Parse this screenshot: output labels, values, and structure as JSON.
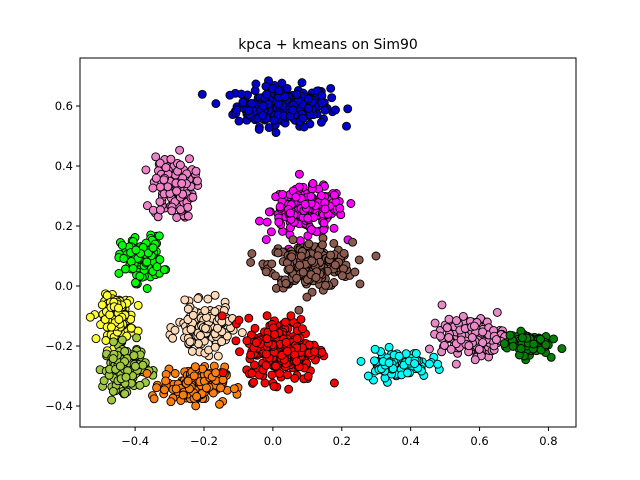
{
  "chart_data": {
    "type": "scatter",
    "title": "kpca + kmeans on Sim90",
    "xlabel": "",
    "ylabel": "",
    "xlim": [
      -0.56,
      0.88
    ],
    "ylim": [
      -0.47,
      0.76
    ],
    "xticks": [
      -0.4,
      -0.2,
      0.0,
      0.2,
      0.4,
      0.6,
      0.8
    ],
    "yticks": [
      -0.4,
      -0.2,
      0.0,
      0.2,
      0.4,
      0.6
    ],
    "xtick_labels": [
      "−0.4",
      "−0.2",
      "0.0",
      "0.2",
      "0.4",
      "0.6",
      "0.8"
    ],
    "ytick_labels": [
      "−0.4",
      "−0.2",
      "0.0",
      "0.2",
      "0.4",
      "0.6"
    ],
    "grid": false,
    "legend": "none",
    "marker_edge_color": "#000000",
    "clusters": [
      {
        "color": "#0000cd",
        "center": [
          0.03,
          0.6
        ],
        "spread": [
          0.09,
          0.045
        ],
        "approx_points": 260
      },
      {
        "color": "#ff00ff",
        "center": [
          0.1,
          0.25
        ],
        "spread": [
          0.07,
          0.05
        ],
        "approx_points": 200
      },
      {
        "color": "#8b5a4e",
        "center": [
          0.11,
          0.07
        ],
        "spread": [
          0.08,
          0.05
        ],
        "approx_points": 240
      },
      {
        "color": "#ee82c8",
        "center": [
          -0.29,
          0.33
        ],
        "spread": [
          0.04,
          0.07
        ],
        "approx_points": 120
      },
      {
        "color": "#00ff00",
        "center": [
          -0.38,
          0.09
        ],
        "spread": [
          0.04,
          0.05
        ],
        "approx_points": 130
      },
      {
        "color": "#ffff33",
        "center": [
          -0.45,
          -0.11
        ],
        "spread": [
          0.03,
          0.05
        ],
        "approx_points": 140
      },
      {
        "color": "#a0c840",
        "center": [
          -0.43,
          -0.27
        ],
        "spread": [
          0.04,
          0.05
        ],
        "approx_points": 140
      },
      {
        "color": "#ffdab9",
        "center": [
          -0.2,
          -0.14
        ],
        "spread": [
          0.05,
          0.05
        ],
        "approx_points": 170
      },
      {
        "color": "#ff7f0e",
        "center": [
          -0.23,
          -0.33
        ],
        "spread": [
          0.06,
          0.04
        ],
        "approx_points": 170
      },
      {
        "color": "#ff0000",
        "center": [
          0.03,
          -0.21
        ],
        "spread": [
          0.07,
          0.07
        ],
        "approx_points": 280
      },
      {
        "color": "#00ffff",
        "center": [
          0.36,
          -0.26
        ],
        "spread": [
          0.06,
          0.03
        ],
        "approx_points": 110
      },
      {
        "color": "#e88ac8",
        "center": [
          0.58,
          -0.17
        ],
        "spread": [
          0.06,
          0.04
        ],
        "approx_points": 190
      },
      {
        "color": "#008000",
        "center": [
          0.74,
          -0.19
        ],
        "spread": [
          0.04,
          0.025
        ],
        "approx_points": 110
      }
    ]
  }
}
